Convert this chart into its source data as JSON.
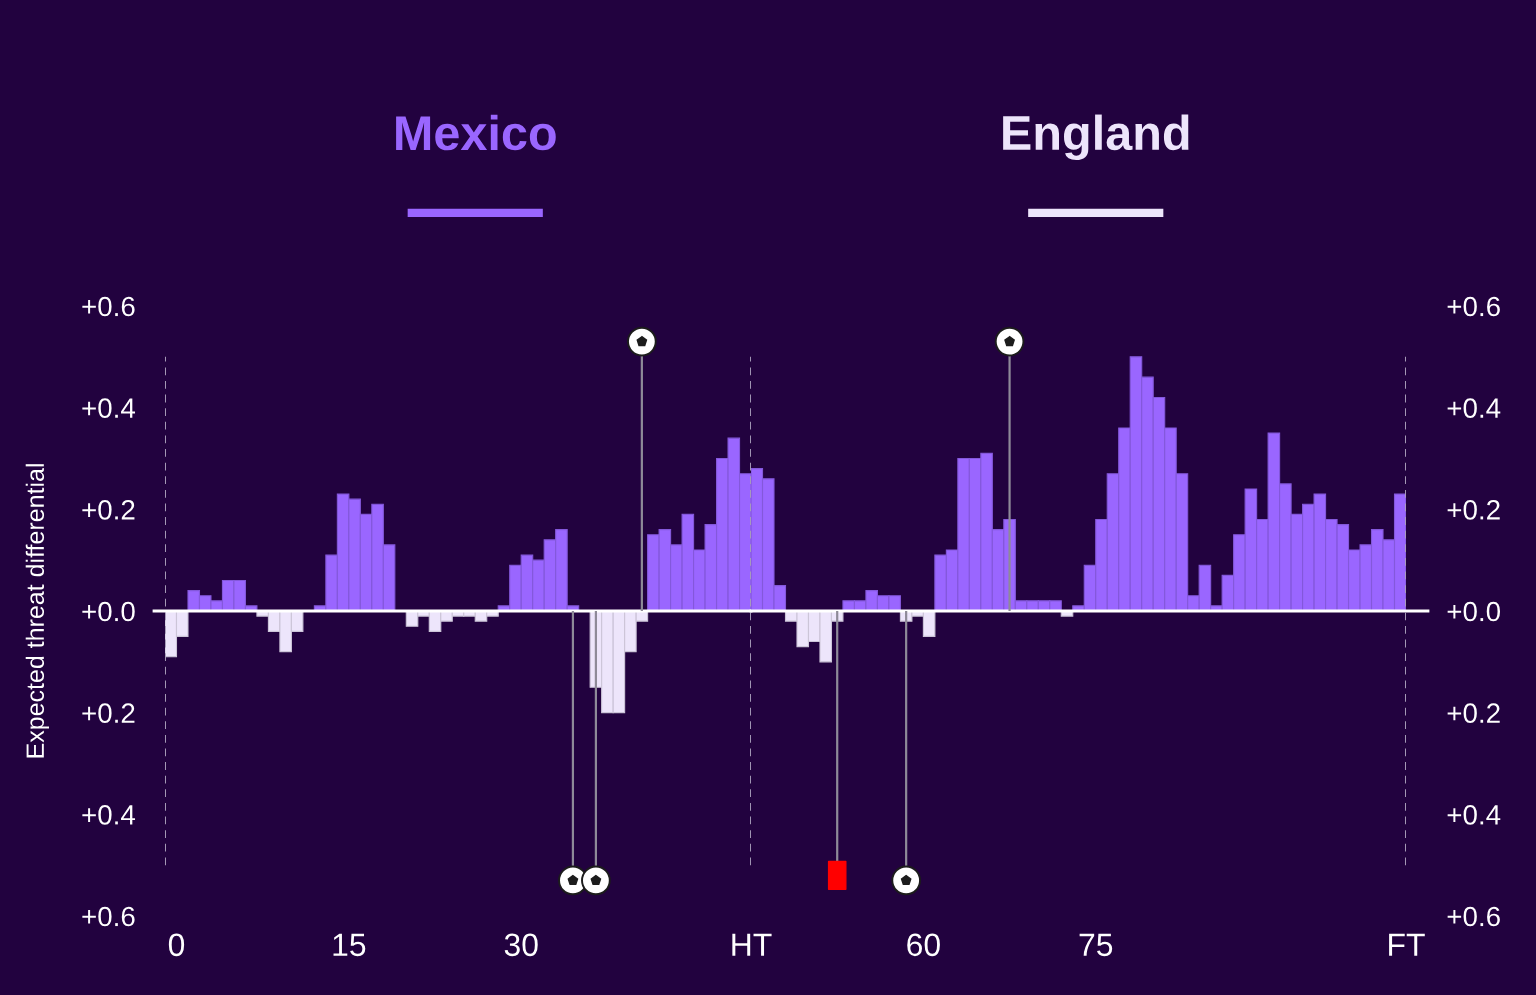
{
  "chart_data": [
    {
      "type": "bar",
      "ylabel": "Expected threat differential",
      "x": [
        -0.5,
        0.5,
        1.5,
        2.5,
        3.5,
        4.5,
        5.5,
        6.5,
        7.5,
        8.5,
        9.5,
        10.5,
        11.5,
        12.5,
        13.5,
        14.5,
        15.5,
        16.5,
        17.5,
        18.5,
        19.5,
        20.5,
        21.5,
        22.5,
        23.5,
        24.5,
        25.5,
        26.5,
        27.5,
        28.5,
        29.5,
        30.5,
        31.5,
        32.5,
        33.5,
        34.5,
        35.5,
        36.5,
        37.5,
        38.5,
        39.5,
        40.5,
        41.5,
        42.5,
        43.5,
        44.5,
        45.5,
        46.5,
        47.5,
        48.5,
        49.5
      ],
      "series": [
        {
          "name": "Mexico",
          "color": "#9a66ff",
          "values": [
            null,
            null,
            0.04,
            0.03,
            0.02,
            0.06,
            0.06,
            0.01,
            null,
            null,
            null,
            null,
            null,
            0.01,
            0.11,
            0.23,
            0.22,
            0.19,
            0.21,
            0.13,
            null,
            null,
            null,
            null,
            null,
            null,
            null,
            null,
            null,
            0.01,
            0.09,
            0.11,
            0.1,
            0.14,
            0.16,
            0.01,
            null,
            null,
            null,
            null,
            null,
            null,
            0.15,
            0.16,
            0.13,
            0.19,
            0.12,
            0.17,
            0.3,
            0.34,
            0.27
          ]
        },
        {
          "name": "England",
          "color": "#ede5fb",
          "values": [
            -0.09,
            -0.05,
            null,
            null,
            null,
            null,
            null,
            null,
            -0.01,
            -0.04,
            -0.08,
            -0.04,
            null,
            null,
            null,
            null,
            null,
            null,
            null,
            null,
            null,
            -0.03,
            -0.01,
            -0.04,
            -0.02,
            -0.01,
            -0.01,
            -0.02,
            -0.01,
            null,
            null,
            null,
            null,
            null,
            null,
            null,
            null,
            -0.15,
            -0.2,
            -0.2,
            -0.08,
            -0.02,
            null,
            null,
            null,
            null,
            null,
            null,
            null,
            null,
            null
          ]
        },
        {
          "type": "lollipop",
          "marker": "circle",
          "color": "#ffffff",
          "x": [
            34.5,
            36.5,
            40.5
          ],
          "values": [
            -0.53,
            -0.53,
            0.53
          ]
        }
      ],
      "xlim": [
        -1,
        50
      ],
      "xticks": [
        0,
        15,
        30,
        {
          "value": 50,
          "label": "HT"
        }
      ],
      "ylim": [
        -0.6,
        0.6
      ],
      "yticks": [
        {
          "value": -0.6,
          "label": "+0.6"
        },
        {
          "value": -0.4,
          "label": "+0.4"
        },
        {
          "value": -0.2,
          "label": "+0.2"
        },
        {
          "value": 0,
          "label": "+0.0"
        },
        {
          "value": 0.2,
          "label": "+0.2"
        },
        {
          "value": 0.4,
          "label": "+0.4"
        },
        {
          "value": 0.6,
          "label": "+0.6"
        }
      ],
      "ref_lines": [
        {
          "axis": "y",
          "value": 0,
          "color": "#ffffff",
          "line_style": "solid"
        },
        {
          "axis": "x",
          "value": -1,
          "color": "#a89dba",
          "line_style": "dashed"
        },
        {
          "axis": "x",
          "value": 50,
          "color": "#a89dba",
          "line_style": "dashed"
        }
      ],
      "legend": "top"
    },
    {
      "type": "bar",
      "x": [
        45.5,
        46.5,
        47.5,
        48.5,
        49.5,
        50.5,
        51.5,
        52.5,
        53.5,
        54.5,
        55.5,
        56.5,
        57.5,
        58.5,
        59.5,
        60.5,
        61.5,
        62.5,
        63.5,
        64.5,
        65.5,
        66.5,
        67.5,
        68.5,
        69.5,
        70.5,
        71.5,
        72.5,
        73.5,
        74.5,
        75.5,
        76.5,
        77.5,
        78.5,
        79.5,
        80.5,
        81.5,
        82.5,
        83.5,
        84.5,
        85.5,
        86.5,
        87.5,
        88.5,
        89.5,
        90.5,
        91.5,
        92.5,
        93.5,
        94.5,
        95.5,
        96.5,
        97.5,
        98.5,
        99.5,
        100.5,
        101.5
      ],
      "series": [
        {
          "color": "#9a66ff",
          "axis": "y2",
          "values": [
            0.28,
            0.26,
            0.05,
            null,
            null,
            null,
            null,
            null,
            0.02,
            0.02,
            0.04,
            0.03,
            0.03,
            null,
            null,
            null,
            0.11,
            0.12,
            0.3,
            0.3,
            0.31,
            0.16,
            0.18,
            0.02,
            0.02,
            0.02,
            0.02,
            null,
            0.01,
            0.09,
            0.18,
            0.27,
            0.36,
            0.5,
            0.46,
            0.42,
            0.36,
            0.27,
            0.03,
            0.09,
            0.01,
            0.07,
            0.15,
            0.24,
            0.18,
            0.35,
            0.25,
            0.19,
            0.21,
            0.23,
            0.18,
            0.17,
            0.12,
            0.13,
            0.16,
            0.14,
            0.23
          ]
        },
        {
          "color": "#ede5fb",
          "axis": "y2",
          "values": [
            null,
            null,
            null,
            -0.02,
            -0.07,
            -0.06,
            -0.1,
            -0.02,
            null,
            null,
            null,
            null,
            null,
            -0.02,
            -0.01,
            -0.05,
            null,
            null,
            null,
            null,
            null,
            null,
            null,
            null,
            null,
            null,
            null,
            -0.01,
            null,
            null,
            null,
            null,
            null,
            null,
            null,
            null,
            null,
            null,
            null,
            null,
            null,
            null,
            null,
            null,
            null,
            null,
            null,
            null,
            null,
            null,
            null,
            null,
            null,
            null,
            null,
            null,
            null
          ]
        },
        {
          "type": "lollipop",
          "marker": "square",
          "color": "#ff0000",
          "axis": "y2",
          "x": [
            52.5
          ],
          "values": [
            -0.52
          ]
        },
        {
          "type": "lollipop",
          "marker": "circle",
          "color": "#ffffff",
          "axis": "y2",
          "x": [
            58.5,
            67.5
          ],
          "values": [
            -0.53,
            0.53
          ]
        }
      ],
      "xlim": [
        45,
        102
      ],
      "xticks": [
        60,
        75,
        {
          "value": 102,
          "label": "FT"
        }
      ],
      "y2lim": [
        -0.6,
        0.6
      ],
      "y2ticks": [
        {
          "value": -0.6,
          "label": "+0.6"
        },
        {
          "value": -0.4,
          "label": "+0.4"
        },
        {
          "value": -0.2,
          "label": "+0.2"
        },
        {
          "value": 0,
          "label": "+0.0"
        },
        {
          "value": 0.2,
          "label": "+0.2"
        },
        {
          "value": 0.4,
          "label": "+0.4"
        },
        {
          "value": 0.6,
          "label": "+0.6"
        }
      ],
      "ref_lines": [
        {
          "axis": "y2",
          "value": 0,
          "color": "#ffffff",
          "line_style": "solid"
        },
        {
          "axis": "x",
          "value": 102,
          "color": "#a89dba",
          "line_style": "dashed"
        }
      ]
    }
  ]
}
